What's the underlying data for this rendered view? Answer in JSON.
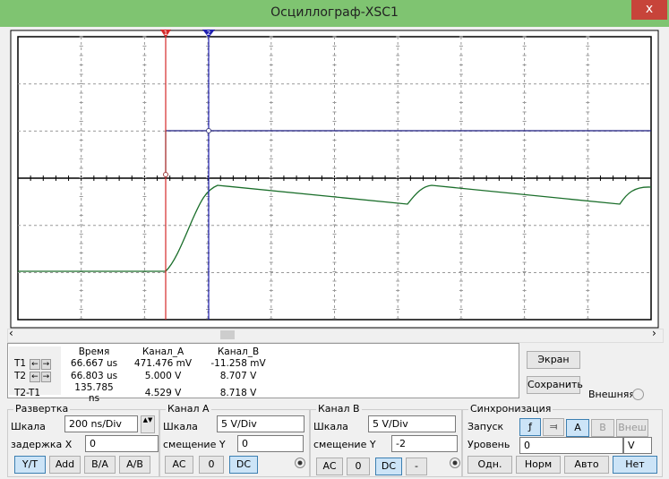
{
  "window": {
    "title": "Осциллограф-XSC1",
    "close": "x"
  },
  "cursors": {
    "t1_marker": "1",
    "t2_marker": "2"
  },
  "readings": {
    "headers": [
      "Время",
      "Канал_A",
      "Канал_B"
    ],
    "rows": [
      {
        "label": "T1",
        "values": [
          "66.667 us",
          "471.476 mV",
          "-11.258 mV"
        ]
      },
      {
        "label": "T2",
        "values": [
          "66.803 us",
          "5.000 V",
          "8.707 V"
        ]
      },
      {
        "label": "T2-T1",
        "values": [
          "135.785 ns",
          "4.529 V",
          "8.718 V"
        ]
      }
    ]
  },
  "buttons": {
    "screen": "Экран",
    "save": "Сохранить",
    "external": "Внешняя"
  },
  "timebase": {
    "title": "Развертка",
    "scale_label": "Шкала",
    "scale": "200 ns/Div",
    "delay_label": "задержка X",
    "delay": "0",
    "modes": [
      "Y/T",
      "Add",
      "B/A",
      "A/B"
    ]
  },
  "channel_a": {
    "title": "Канал A",
    "scale_label": "Шкала",
    "scale": "5 V/Div",
    "offset_label": "смещение Y",
    "offset": "0",
    "coupling": [
      "AC",
      "0",
      "DC"
    ]
  },
  "channel_b": {
    "title": "Канал B",
    "scale_label": "Шкала",
    "scale": "5 V/Div",
    "offset_label": "смещение Y",
    "offset": "-2",
    "coupling": [
      "AC",
      "0",
      "DC",
      "-"
    ]
  },
  "trigger": {
    "title": "Синхронизация",
    "edge_label": "Запуск",
    "sources": [
      "A",
      "B",
      "Внеш"
    ],
    "level_label": "Уровень",
    "level": "0",
    "level_unit": "V",
    "modes": [
      "Одн.",
      "Норм",
      "Авто",
      "Нет"
    ]
  }
}
